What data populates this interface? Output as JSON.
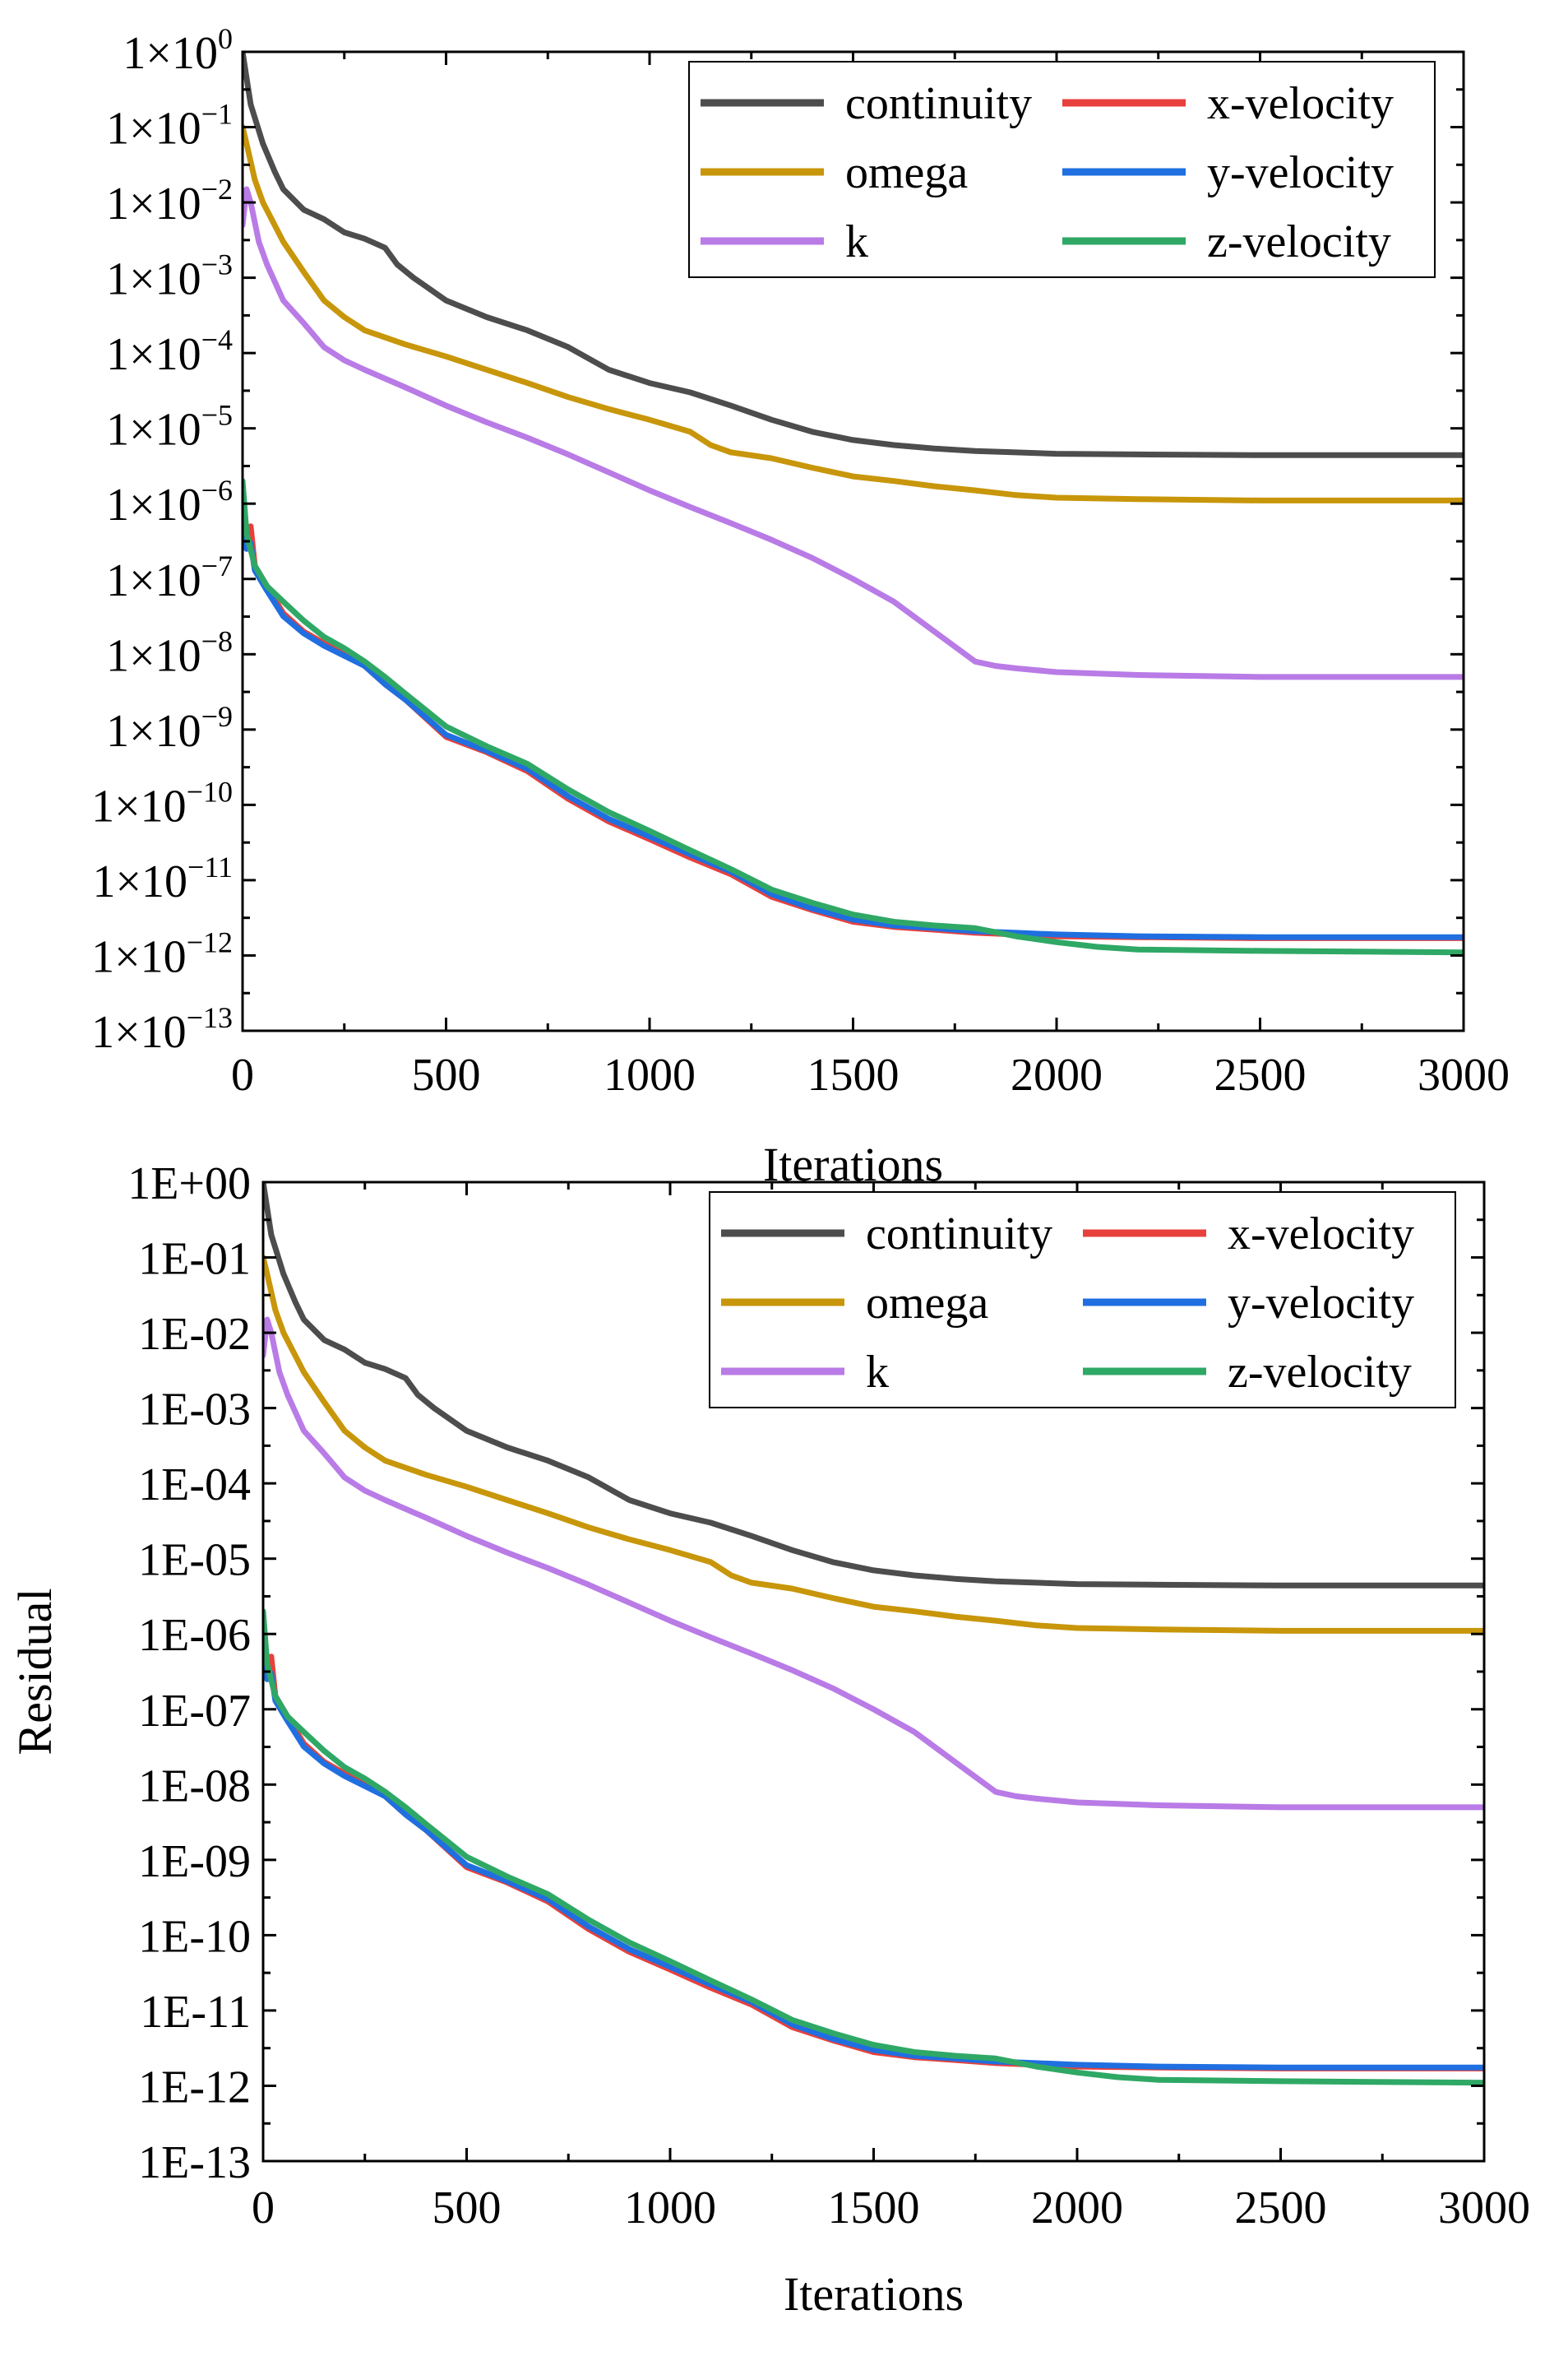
{
  "chart_data": [
    {
      "type": "line",
      "tick_format": "sci",
      "title": "",
      "xlabel": "Iterations",
      "ylabel": "",
      "xlim": [
        0,
        3000
      ],
      "ylim": [
        1e-13,
        1
      ],
      "y_scale": "log",
      "grid": false,
      "legend_position": "top-right",
      "x_ticks": [
        0,
        500,
        1000,
        1500,
        2000,
        2500,
        3000
      ],
      "y_tick_labels": [
        {
          "mant": "1×10",
          "exp": "0"
        },
        {
          "mant": "1×10",
          "exp": "−1"
        },
        {
          "mant": "1×10",
          "exp": "−2"
        },
        {
          "mant": "1×10",
          "exp": "−3"
        },
        {
          "mant": "1×10",
          "exp": "−4"
        },
        {
          "mant": "1×10",
          "exp": "−5"
        },
        {
          "mant": "1×10",
          "exp": "−6"
        },
        {
          "mant": "1×10",
          "exp": "−7"
        },
        {
          "mant": "1×10",
          "exp": "−8"
        },
        {
          "mant": "1×10",
          "exp": "−9"
        },
        {
          "mant": "1×10",
          "exp": "−10"
        },
        {
          "mant": "1×10",
          "exp": "−11"
        },
        {
          "mant": "1×10",
          "exp": "−12"
        },
        {
          "mant": "1×10",
          "exp": "−13"
        }
      ],
      "series": [
        {
          "name": "continuity",
          "color": "#4d4d4d",
          "x": [
            0,
            20,
            50,
            80,
            100,
            150,
            200,
            250,
            300,
            350,
            380,
            420,
            500,
            600,
            700,
            800,
            900,
            1000,
            1100,
            1200,
            1300,
            1400,
            1500,
            1600,
            1700,
            1800,
            1900,
            2000,
            2200,
            2500,
            2800,
            3000
          ],
          "y": [
            1,
            0.2,
            0.06,
            0.025,
            0.015,
            0.008,
            0.006,
            0.004,
            0.0033,
            0.0025,
            0.0015,
            0.001,
            0.0005,
            0.0003,
            0.0002,
            0.00012,
            6e-05,
            4e-05,
            3e-05,
            2e-05,
            1.3e-05,
            9e-06,
            7e-06,
            6e-06,
            5.4e-06,
            5e-06,
            4.8e-06,
            4.6e-06,
            4.5e-06,
            4.4e-06,
            4.4e-06,
            4.4e-06
          ]
        },
        {
          "name": "omega",
          "color": "#c8960a",
          "x": [
            0,
            10,
            30,
            50,
            100,
            150,
            200,
            250,
            300,
            400,
            500,
            600,
            700,
            800,
            900,
            1000,
            1100,
            1150,
            1200,
            1300,
            1400,
            1500,
            1600,
            1700,
            1800,
            1900,
            2000,
            2200,
            2500,
            3000
          ],
          "y": [
            0.1,
            0.06,
            0.02,
            0.01,
            0.003,
            0.0012,
            0.0005,
            0.0003,
            0.0002,
            0.00013,
            9e-05,
            6e-05,
            4e-05,
            2.6e-05,
            1.8e-05,
            1.3e-05,
            9e-06,
            6e-06,
            4.8e-06,
            4e-06,
            3e-06,
            2.3e-06,
            2e-06,
            1.7e-06,
            1.5e-06,
            1.3e-06,
            1.2e-06,
            1.15e-06,
            1.1e-06,
            1.1e-06
          ]
        },
        {
          "name": "k",
          "color": "#b97be6",
          "x": [
            0,
            10,
            20,
            40,
            60,
            100,
            150,
            200,
            250,
            300,
            400,
            500,
            600,
            700,
            800,
            900,
            1000,
            1100,
            1200,
            1300,
            1400,
            1500,
            1600,
            1700,
            1800,
            1850,
            1900,
            2000,
            2200,
            2500,
            3000
          ],
          "y": [
            0.005,
            0.015,
            0.01,
            0.003,
            0.0015,
            0.0005,
            0.00025,
            0.00012,
            8e-05,
            6e-05,
            3.5e-05,
            2e-05,
            1.2e-05,
            7.5e-06,
            4.5e-06,
            2.6e-06,
            1.5e-06,
            9e-07,
            5.5e-07,
            3.3e-07,
            1.9e-07,
            1e-07,
            5e-08,
            2e-08,
            8e-09,
            7e-09,
            6.5e-09,
            5.8e-09,
            5.3e-09,
            5e-09,
            5e-09
          ]
        },
        {
          "name": "x-velocity",
          "color": "#e8403c",
          "x": [
            0,
            10,
            20,
            30,
            60,
            100,
            150,
            200,
            300,
            350,
            400,
            500,
            600,
            700,
            800,
            900,
            1000,
            1100,
            1200,
            1300,
            1400,
            1500,
            1600,
            1700,
            1800,
            1900,
            2000,
            2200,
            2500,
            3000
          ],
          "y": [
            1.5e-06,
            3e-07,
            5e-07,
            1.5e-07,
            8e-08,
            3.5e-08,
            2e-08,
            1.4e-08,
            7e-09,
            4e-09,
            2.5e-09,
            8e-10,
            5e-10,
            2.8e-10,
            1.2e-10,
            6e-11,
            3.5e-11,
            2e-11,
            1.2e-11,
            6e-12,
            4e-12,
            2.8e-12,
            2.4e-12,
            2.2e-12,
            2e-12,
            1.9e-12,
            1.8e-12,
            1.75e-12,
            1.7e-12,
            1.7e-12
          ]
        },
        {
          "name": "y-velocity",
          "color": "#1f6fe0",
          "x": [
            0,
            10,
            20,
            30,
            60,
            100,
            150,
            200,
            300,
            350,
            400,
            500,
            600,
            700,
            800,
            900,
            1000,
            1100,
            1200,
            1300,
            1400,
            1500,
            1600,
            1700,
            1800,
            1900,
            2000,
            2200,
            2500,
            3000
          ],
          "y": [
            1.2e-06,
            2.5e-07,
            3e-07,
            1.3e-07,
            7e-08,
            3.2e-08,
            1.9e-08,
            1.3e-08,
            7e-09,
            4e-09,
            2.5e-09,
            8.5e-10,
            5.2e-10,
            3e-10,
            1.3e-10,
            6.5e-11,
            3.8e-11,
            2.2e-11,
            1.3e-11,
            6.5e-12,
            4.2e-12,
            3e-12,
            2.5e-12,
            2.3e-12,
            2.1e-12,
            2e-12,
            1.9e-12,
            1.8e-12,
            1.75e-12,
            1.75e-12
          ]
        },
        {
          "name": "z-velocity",
          "color": "#2fa866",
          "x": [
            0,
            10,
            30,
            60,
            100,
            150,
            200,
            250,
            300,
            350,
            400,
            500,
            600,
            700,
            800,
            900,
            1000,
            1100,
            1200,
            1300,
            1400,
            1500,
            1600,
            1700,
            1800,
            1900,
            2000,
            2100,
            2200,
            2500,
            3000
          ],
          "y": [
            2e-06,
            4e-07,
            1.5e-07,
            8e-08,
            5e-08,
            2.8e-08,
            1.7e-08,
            1.2e-08,
            8e-09,
            5e-09,
            3e-09,
            1.1e-09,
            6e-10,
            3.5e-10,
            1.6e-10,
            8e-11,
            4.5e-11,
            2.5e-11,
            1.4e-11,
            7.5e-12,
            5e-12,
            3.5e-12,
            2.8e-12,
            2.5e-12,
            2.3e-12,
            1.8e-12,
            1.5e-12,
            1.3e-12,
            1.2e-12,
            1.15e-12,
            1.1e-12
          ]
        }
      ]
    },
    {
      "type": "line",
      "tick_format": "E",
      "title": "",
      "xlabel": "Iterations",
      "ylabel": "Residual",
      "xlim": [
        0,
        3000
      ],
      "ylim": [
        1e-13,
        1
      ],
      "y_scale": "log",
      "grid": false,
      "legend_position": "top-right",
      "x_ticks": [
        0,
        500,
        1000,
        1500,
        2000,
        2500,
        3000
      ],
      "y_tick_labels": [
        {
          "text": "1E+00"
        },
        {
          "text": "1E-01"
        },
        {
          "text": "1E-02"
        },
        {
          "text": "1E-03"
        },
        {
          "text": "1E-04"
        },
        {
          "text": "1E-05"
        },
        {
          "text": "1E-06"
        },
        {
          "text": "1E-07"
        },
        {
          "text": "1E-08"
        },
        {
          "text": "1E-09"
        },
        {
          "text": "1E-10"
        },
        {
          "text": "1E-11"
        },
        {
          "text": "1E-12"
        },
        {
          "text": "1E-13"
        }
      ],
      "series": [
        {
          "name": "continuity",
          "color": "#4d4d4d",
          "x": [
            0,
            20,
            50,
            80,
            100,
            150,
            200,
            250,
            300,
            350,
            380,
            420,
            500,
            600,
            700,
            800,
            900,
            1000,
            1100,
            1200,
            1300,
            1400,
            1500,
            1600,
            1700,
            1800,
            1900,
            2000,
            2200,
            2500,
            2800,
            3000
          ],
          "y": [
            1,
            0.2,
            0.06,
            0.025,
            0.015,
            0.008,
            0.006,
            0.004,
            0.0033,
            0.0025,
            0.0015,
            0.001,
            0.0005,
            0.0003,
            0.0002,
            0.00012,
            6e-05,
            4e-05,
            3e-05,
            2e-05,
            1.3e-05,
            9e-06,
            7e-06,
            6e-06,
            5.4e-06,
            5e-06,
            4.8e-06,
            4.6e-06,
            4.5e-06,
            4.4e-06,
            4.4e-06,
            4.4e-06
          ]
        },
        {
          "name": "omega",
          "color": "#c8960a",
          "x": [
            0,
            10,
            30,
            50,
            100,
            150,
            200,
            250,
            300,
            400,
            500,
            600,
            700,
            800,
            900,
            1000,
            1100,
            1150,
            1200,
            1300,
            1400,
            1500,
            1600,
            1700,
            1800,
            1900,
            2000,
            2200,
            2500,
            3000
          ],
          "y": [
            0.1,
            0.06,
            0.02,
            0.01,
            0.003,
            0.0012,
            0.0005,
            0.0003,
            0.0002,
            0.00013,
            9e-05,
            6e-05,
            4e-05,
            2.6e-05,
            1.8e-05,
            1.3e-05,
            9e-06,
            6e-06,
            4.8e-06,
            4e-06,
            3e-06,
            2.3e-06,
            2e-06,
            1.7e-06,
            1.5e-06,
            1.3e-06,
            1.2e-06,
            1.15e-06,
            1.1e-06,
            1.1e-06
          ]
        },
        {
          "name": "k",
          "color": "#b97be6",
          "x": [
            0,
            10,
            20,
            40,
            60,
            100,
            150,
            200,
            250,
            300,
            400,
            500,
            600,
            700,
            800,
            900,
            1000,
            1100,
            1200,
            1300,
            1400,
            1500,
            1600,
            1700,
            1800,
            1850,
            1900,
            2000,
            2200,
            2500,
            3000
          ],
          "y": [
            0.005,
            0.015,
            0.01,
            0.003,
            0.0015,
            0.0005,
            0.00025,
            0.00012,
            8e-05,
            6e-05,
            3.5e-05,
            2e-05,
            1.2e-05,
            7.5e-06,
            4.5e-06,
            2.6e-06,
            1.5e-06,
            9e-07,
            5.5e-07,
            3.3e-07,
            1.9e-07,
            1e-07,
            5e-08,
            2e-08,
            8e-09,
            7e-09,
            6.5e-09,
            5.8e-09,
            5.3e-09,
            5e-09,
            5e-09
          ]
        },
        {
          "name": "x-velocity",
          "color": "#e8403c",
          "x": [
            0,
            10,
            20,
            30,
            60,
            100,
            150,
            200,
            300,
            350,
            400,
            500,
            600,
            700,
            800,
            900,
            1000,
            1100,
            1200,
            1300,
            1400,
            1500,
            1600,
            1700,
            1800,
            1900,
            2000,
            2200,
            2500,
            3000
          ],
          "y": [
            1.5e-06,
            3e-07,
            5e-07,
            1.5e-07,
            8e-08,
            3.5e-08,
            2e-08,
            1.4e-08,
            7e-09,
            4e-09,
            2.5e-09,
            8e-10,
            5e-10,
            2.8e-10,
            1.2e-10,
            6e-11,
            3.5e-11,
            2e-11,
            1.2e-11,
            6e-12,
            4e-12,
            2.8e-12,
            2.4e-12,
            2.2e-12,
            2e-12,
            1.9e-12,
            1.8e-12,
            1.75e-12,
            1.7e-12,
            1.7e-12
          ]
        },
        {
          "name": "y-velocity",
          "color": "#1f6fe0",
          "x": [
            0,
            10,
            20,
            30,
            60,
            100,
            150,
            200,
            300,
            350,
            400,
            500,
            600,
            700,
            800,
            900,
            1000,
            1100,
            1200,
            1300,
            1400,
            1500,
            1600,
            1700,
            1800,
            1900,
            2000,
            2200,
            2500,
            3000
          ],
          "y": [
            1.2e-06,
            2.5e-07,
            3e-07,
            1.3e-07,
            7e-08,
            3.2e-08,
            1.9e-08,
            1.3e-08,
            7e-09,
            4e-09,
            2.5e-09,
            8.5e-10,
            5.2e-10,
            3e-10,
            1.3e-10,
            6.5e-11,
            3.8e-11,
            2.2e-11,
            1.3e-11,
            6.5e-12,
            4.2e-12,
            3e-12,
            2.5e-12,
            2.3e-12,
            2.1e-12,
            2e-12,
            1.9e-12,
            1.8e-12,
            1.75e-12,
            1.75e-12
          ]
        },
        {
          "name": "z-velocity",
          "color": "#2fa866",
          "x": [
            0,
            10,
            30,
            60,
            100,
            150,
            200,
            250,
            300,
            350,
            400,
            500,
            600,
            700,
            800,
            900,
            1000,
            1100,
            1200,
            1300,
            1400,
            1500,
            1600,
            1700,
            1800,
            1900,
            2000,
            2100,
            2200,
            2500,
            3000
          ],
          "y": [
            2e-06,
            4e-07,
            1.5e-07,
            8e-08,
            5e-08,
            2.8e-08,
            1.7e-08,
            1.2e-08,
            8e-09,
            5e-09,
            3e-09,
            1.1e-09,
            6e-10,
            3.5e-10,
            1.6e-10,
            8e-11,
            4.5e-11,
            2.5e-11,
            1.4e-11,
            7.5e-12,
            5e-12,
            3.5e-12,
            2.8e-12,
            2.5e-12,
            2.3e-12,
            1.8e-12,
            1.5e-12,
            1.3e-12,
            1.2e-12,
            1.15e-12,
            1.1e-12
          ]
        }
      ]
    }
  ]
}
